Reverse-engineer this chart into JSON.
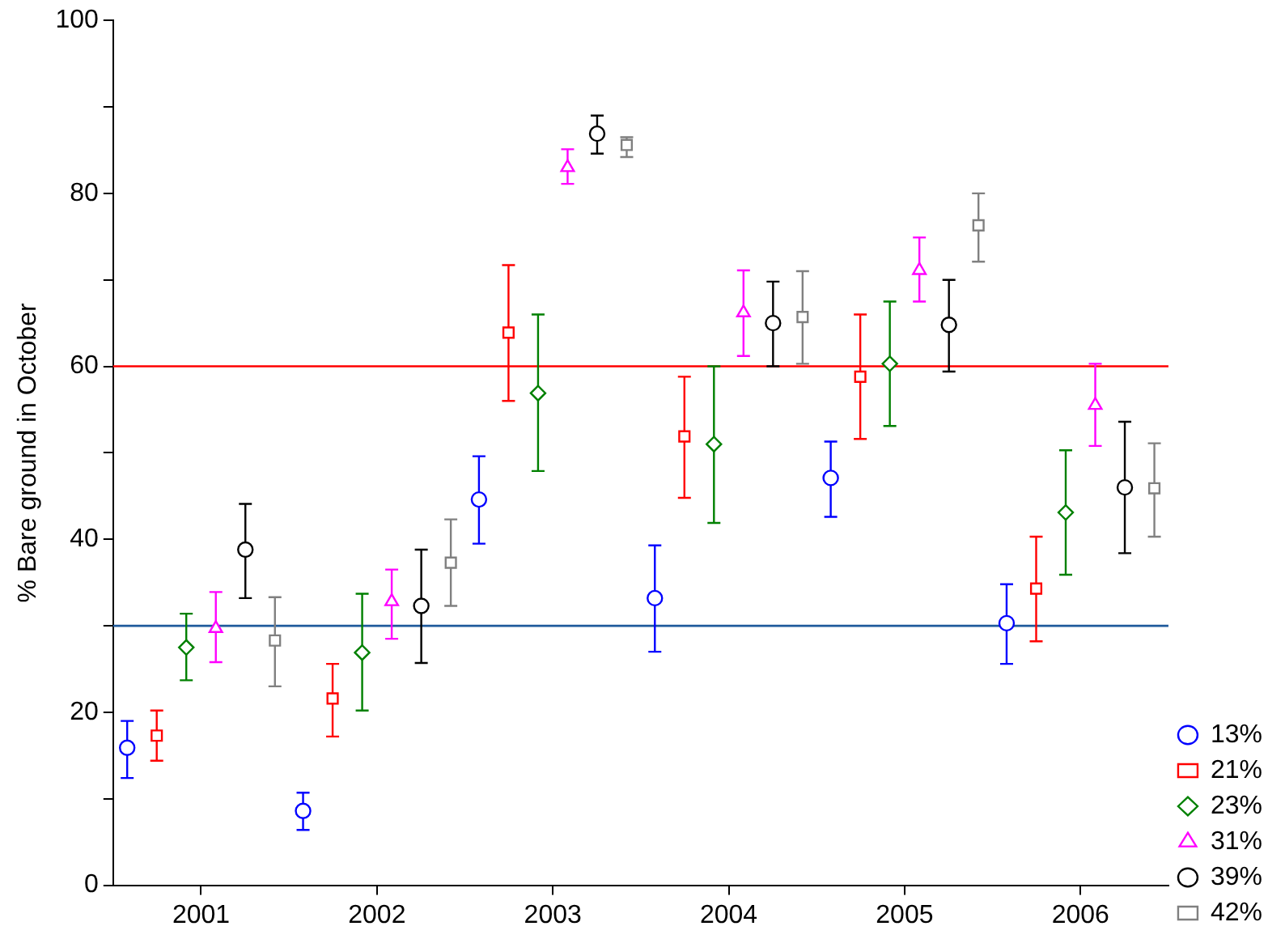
{
  "chart_data": {
    "type": "scatter",
    "ylabel": "% Bare ground in October",
    "categories": [
      "2001",
      "2002",
      "2003",
      "2004",
      "2005",
      "2006"
    ],
    "ylim": [
      0,
      100
    ],
    "yticks": [
      0,
      {
        "value": 10,
        "label": null
      },
      20,
      {
        "value": 30,
        "label": null
      },
      40,
      {
        "value": 50,
        "label": null
      },
      60,
      {
        "value": 70,
        "label": null
      },
      80,
      {
        "value": 90,
        "label": null
      },
      100
    ],
    "grid": false,
    "legend": "bottom right",
    "ref_lines": [
      {
        "axis": "y",
        "value": 60,
        "color": "#ff0000"
      },
      {
        "axis": "y",
        "value": 30,
        "color": "#1f5a9c"
      }
    ],
    "series": [
      {
        "name": "13%",
        "color": "#0000ff",
        "marker": "circle",
        "values": [
          15.9,
          8.6,
          44.6,
          33.2,
          47.1,
          30.3
        ],
        "errors": [
          [
            12.4,
            19.0
          ],
          [
            6.4,
            10.7
          ],
          [
            39.5,
            49.6
          ],
          [
            27.0,
            39.3
          ],
          [
            42.6,
            51.3
          ],
          [
            25.6,
            34.8
          ]
        ]
      },
      {
        "name": "21%",
        "color": "#ff0000",
        "marker": "square",
        "values": [
          17.3,
          21.6,
          63.9,
          51.9,
          58.8,
          34.3
        ],
        "errors": [
          [
            14.4,
            20.2
          ],
          [
            17.2,
            25.6
          ],
          [
            56.0,
            71.7
          ],
          [
            44.8,
            58.8
          ],
          [
            51.6,
            66.0
          ],
          [
            28.2,
            40.3
          ]
        ]
      },
      {
        "name": "23%",
        "color": "#008000",
        "marker": "diamond",
        "values": [
          27.5,
          26.9,
          56.9,
          51.0,
          60.3,
          43.1
        ],
        "errors": [
          [
            23.7,
            31.4
          ],
          [
            20.2,
            33.7
          ],
          [
            47.9,
            66.0
          ],
          [
            41.9,
            60.0
          ],
          [
            53.1,
            67.5
          ],
          [
            35.9,
            50.3
          ]
        ]
      },
      {
        "name": "31%",
        "color": "#ff00ff",
        "marker": "triangle",
        "values": [
          29.7,
          32.8,
          83.0,
          66.2,
          71.1,
          55.5
        ],
        "errors": [
          [
            25.8,
            33.9
          ],
          [
            28.5,
            36.5
          ],
          [
            81.1,
            85.1
          ],
          [
            61.2,
            71.1
          ],
          [
            67.5,
            74.9
          ],
          [
            50.8,
            60.3
          ]
        ]
      },
      {
        "name": "39%",
        "color": "#000000",
        "marker": "circle",
        "values": [
          38.8,
          32.3,
          86.9,
          65.0,
          64.8,
          46.0
        ],
        "errors": [
          [
            33.2,
            44.1
          ],
          [
            25.7,
            38.8
          ],
          [
            84.6,
            89.0
          ],
          [
            60.0,
            69.8
          ],
          [
            59.4,
            70.0
          ],
          [
            38.4,
            53.6
          ]
        ]
      },
      {
        "name": "42%",
        "color": "#808080",
        "marker": "square",
        "values": [
          28.3,
          37.3,
          85.6,
          65.7,
          76.3,
          45.9
        ],
        "errors": [
          [
            23.0,
            33.3
          ],
          [
            32.3,
            42.3
          ],
          [
            84.2,
            86.5
          ],
          [
            60.3,
            71.0
          ],
          [
            72.1,
            80.0
          ],
          [
            40.3,
            51.1
          ]
        ]
      }
    ]
  }
}
